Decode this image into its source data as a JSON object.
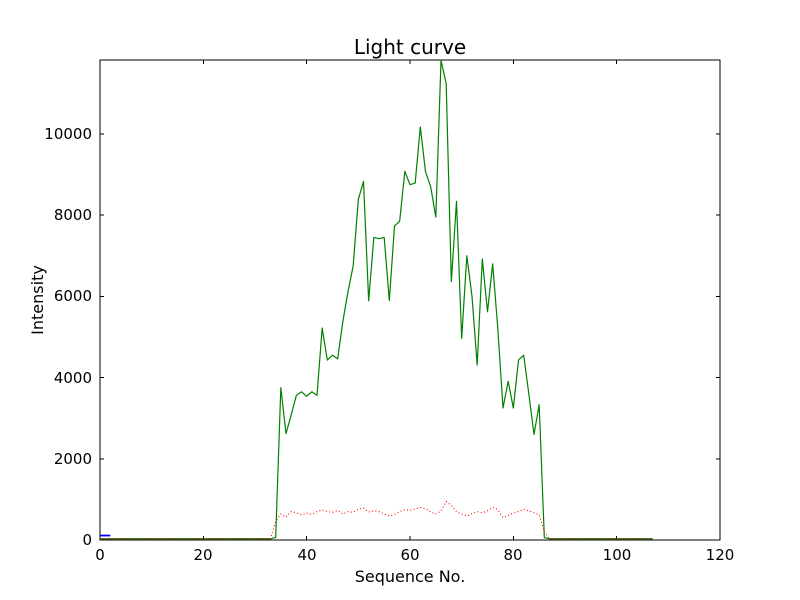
{
  "figure": {
    "background": "#ffffff",
    "axis_color": "#000000"
  },
  "chart_data": {
    "type": "line",
    "title": "Light curve",
    "xlabel": "Sequence No.",
    "ylabel": "Intensity",
    "xlim": [
      0,
      120
    ],
    "ylim": [
      0,
      11820
    ],
    "xticks": [
      0,
      20,
      40,
      60,
      80,
      100,
      120
    ],
    "yticks": [
      0,
      2000,
      4000,
      6000,
      8000,
      10000
    ],
    "grid": false,
    "legend": "none",
    "tick_direction": "in",
    "series": [
      {
        "name": "green-series",
        "color": "#008000",
        "style": "solid",
        "width": 1.2,
        "x": {
          "start": 0,
          "end": 107,
          "step": 1
        },
        "y": [
          30,
          30,
          30,
          30,
          30,
          30,
          30,
          30,
          30,
          30,
          30,
          30,
          30,
          30,
          30,
          30,
          30,
          30,
          30,
          30,
          30,
          30,
          30,
          30,
          30,
          30,
          30,
          30,
          30,
          30,
          30,
          30,
          30,
          30,
          60,
          3750,
          2620,
          3080,
          3560,
          3650,
          3540,
          3650,
          3560,
          5220,
          4430,
          4550,
          4460,
          5380,
          6120,
          6750,
          8390,
          8830,
          5890,
          7450,
          7420,
          7450,
          5900,
          7730,
          7850,
          9080,
          8750,
          8790,
          10170,
          9070,
          8700,
          7950,
          11810,
          11240,
          6360,
          8340,
          4960,
          7000,
          6000,
          4310,
          6920,
          5620,
          6800,
          5200,
          3250,
          3910,
          3250,
          4430,
          4550,
          3600,
          2600,
          3330,
          60,
          30,
          30,
          30,
          30,
          30,
          30,
          30,
          30,
          30,
          30,
          30,
          30,
          30,
          30,
          30,
          30,
          30,
          30,
          30,
          30,
          30
        ]
      },
      {
        "name": "red-series",
        "color": "#ff0000",
        "style": "dotted",
        "width": 1.1,
        "x": {
          "start": 0,
          "end": 107,
          "step": 1
        },
        "y": [
          30,
          30,
          30,
          30,
          30,
          30,
          30,
          30,
          30,
          30,
          30,
          30,
          30,
          30,
          30,
          30,
          30,
          30,
          30,
          30,
          30,
          30,
          30,
          30,
          30,
          30,
          30,
          30,
          30,
          30,
          30,
          30,
          30,
          30,
          450,
          640,
          560,
          700,
          670,
          620,
          660,
          630,
          700,
          740,
          700,
          680,
          730,
          640,
          700,
          680,
          760,
          790,
          690,
          720,
          700,
          640,
          590,
          630,
          700,
          750,
          730,
          760,
          800,
          770,
          690,
          640,
          710,
          950,
          850,
          700,
          640,
          590,
          650,
          700,
          670,
          720,
          800,
          750,
          550,
          610,
          660,
          700,
          760,
          720,
          670,
          620,
          200,
          30,
          30,
          30,
          30,
          30,
          30,
          30,
          30,
          30,
          30,
          30,
          30,
          30,
          30,
          30,
          30,
          30,
          30,
          30,
          30,
          30
        ]
      },
      {
        "name": "blue-series",
        "color": "#0000ff",
        "style": "solid",
        "width": 1.8,
        "x": [
          0,
          1,
          2
        ],
        "y": [
          110,
          110,
          110
        ]
      }
    ]
  }
}
